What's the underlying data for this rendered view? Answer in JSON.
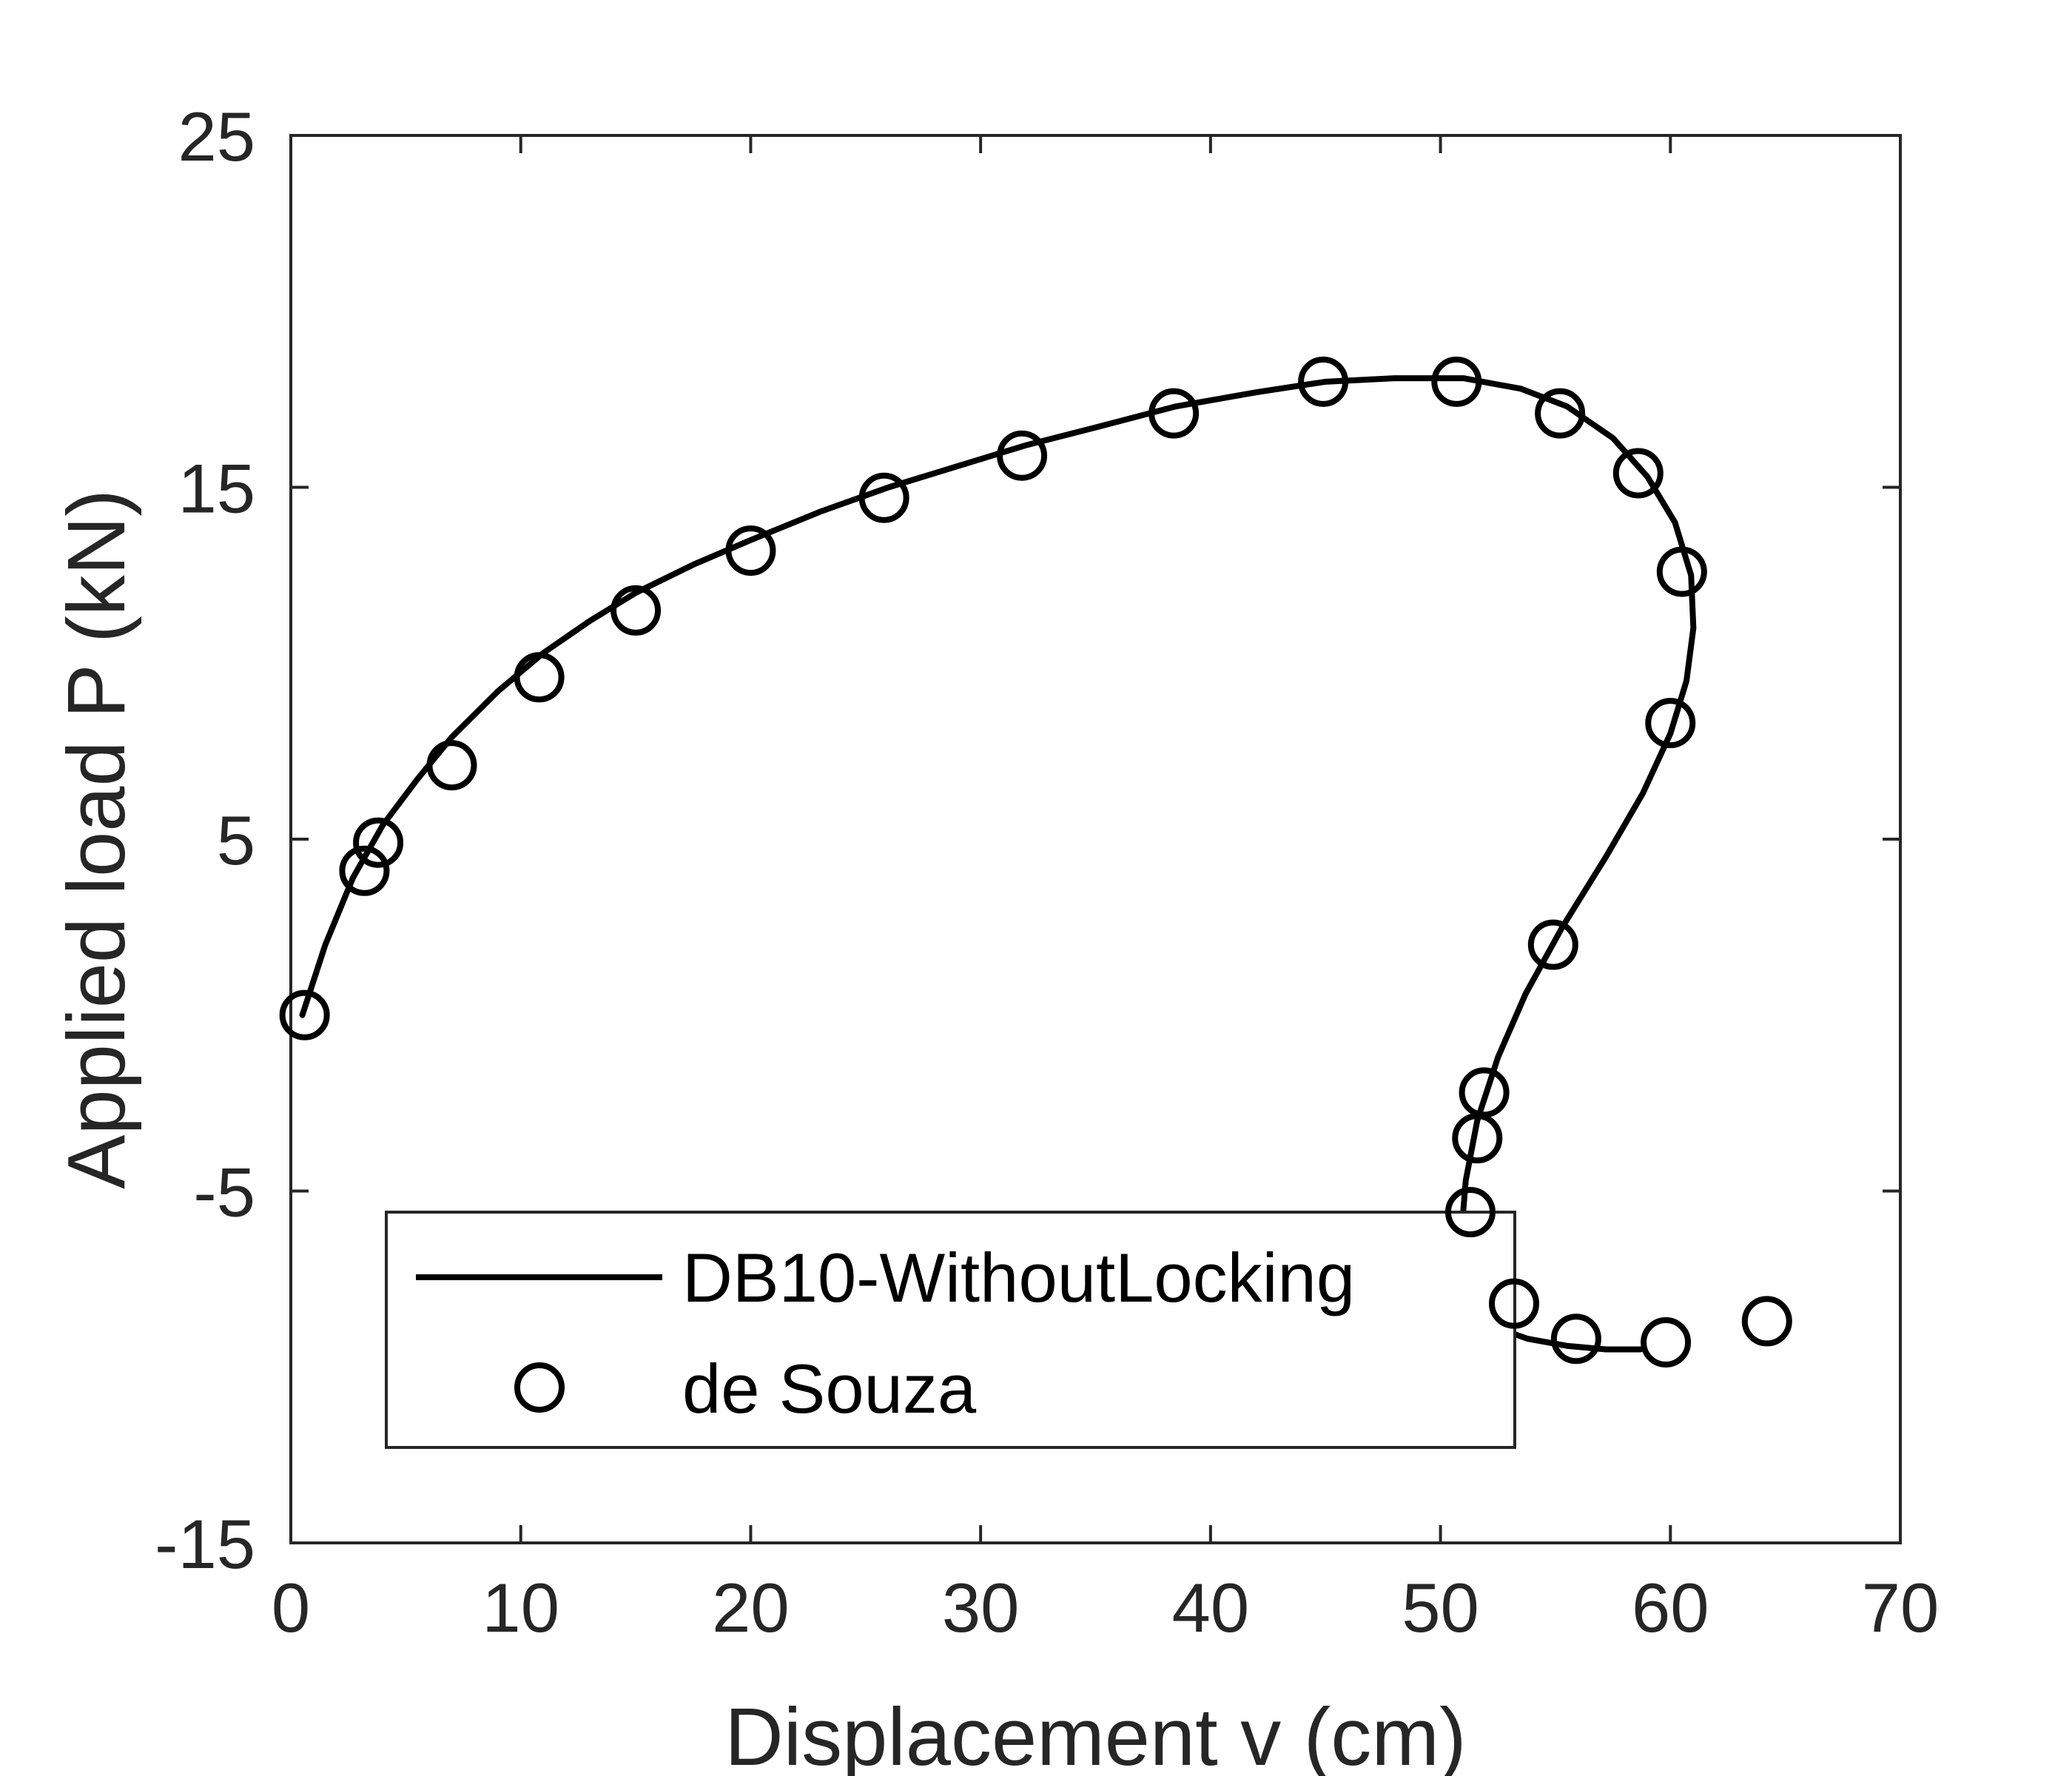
{
  "chart_data": {
    "type": "scatter",
    "xlabel": "Displacement v (cm)",
    "ylabel": "Applied load P (kN)",
    "xlim": [
      0,
      70
    ],
    "ylim": [
      -15,
      25
    ],
    "xticks": [
      0,
      10,
      20,
      30,
      40,
      50,
      60,
      70
    ],
    "yticks": [
      -15,
      -5,
      5,
      15,
      25
    ],
    "xtick_labels": [
      "0",
      "10",
      "20",
      "30",
      "40",
      "50",
      "60",
      "70"
    ],
    "ytick_labels": [
      "-15",
      "-5",
      "5",
      "15",
      "25"
    ],
    "grid": false,
    "legend_position": "bottom-left",
    "colors": {
      "line": "#000000",
      "marker": "#000000",
      "axis": "#262626",
      "background": "#ffffff"
    },
    "series": [
      {
        "name": "DB10-WithoutLocking",
        "style": "line",
        "x": [
          0.5,
          1.5,
          2.7,
          4.0,
          5.5,
          7.0,
          9.0,
          11.0,
          13.0,
          15.0,
          17.5,
          20.0,
          23.0,
          26.0,
          29.0,
          32.0,
          35.0,
          38.5,
          42.0,
          45.0,
          48.0,
          51.0,
          53.5,
          55.5,
          57.5,
          59.0,
          60.2,
          60.9,
          61.0,
          60.7,
          60.0,
          58.8,
          57.2,
          55.3,
          53.7,
          52.5,
          51.6,
          51.1,
          50.9,
          51.0,
          51.5,
          52.5,
          53.8,
          55.5,
          57.2,
          58.7
        ],
        "y": [
          0.0,
          2.0,
          3.9,
          5.4,
          6.7,
          7.9,
          9.2,
          10.3,
          11.2,
          12.0,
          12.8,
          13.5,
          14.3,
          15.0,
          15.6,
          16.2,
          16.7,
          17.3,
          17.7,
          18.0,
          18.1,
          18.1,
          17.8,
          17.3,
          16.4,
          15.3,
          14.0,
          12.5,
          11.0,
          9.5,
          8.0,
          6.3,
          4.5,
          2.5,
          0.6,
          -1.2,
          -3.0,
          -4.7,
          -6.3,
          -7.6,
          -8.4,
          -8.9,
          -9.2,
          -9.4,
          -9.5,
          -9.5
        ]
      },
      {
        "name": "de Souza",
        "style": "marker-circle",
        "x": [
          0.6,
          3.2,
          3.8,
          7.0,
          10.8,
          15.0,
          20.0,
          25.8,
          31.8,
          38.4,
          44.9,
          50.7,
          55.2,
          58.6,
          60.5,
          60.0,
          54.9,
          51.9,
          51.6,
          51.3,
          53.2,
          55.9,
          59.8,
          64.2
        ],
        "y": [
          0.0,
          4.1,
          4.9,
          7.1,
          9.6,
          11.5,
          13.2,
          14.7,
          15.9,
          17.1,
          18.0,
          18.0,
          17.1,
          15.4,
          12.6,
          8.3,
          2.0,
          -2.2,
          -3.5,
          -5.6,
          -8.2,
          -9.2,
          -9.3,
          -8.7
        ]
      }
    ]
  }
}
